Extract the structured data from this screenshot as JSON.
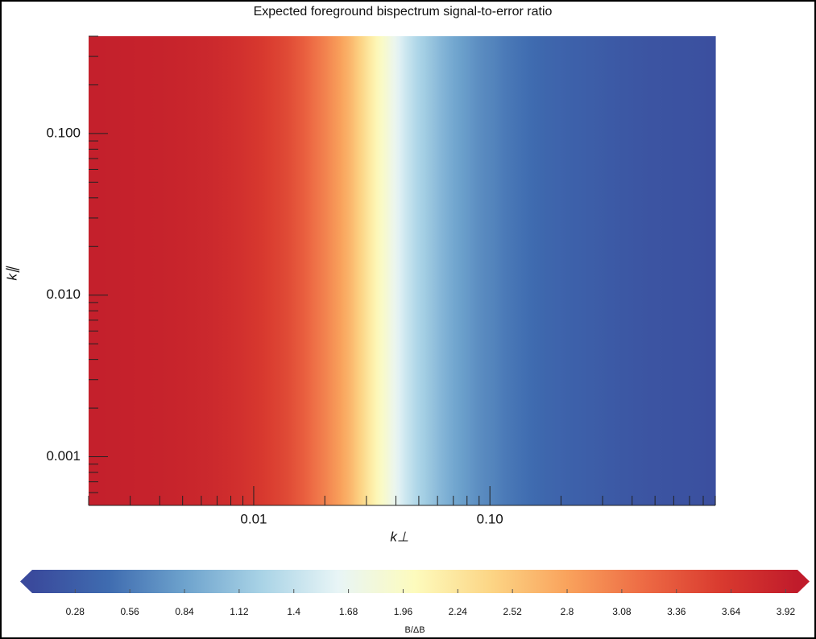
{
  "chart_data": {
    "type": "heatmap",
    "title": "Expected foreground bispectrum signal-to-error ratio",
    "xlabel": "k⊥",
    "ylabel": "k∥",
    "xlog": true,
    "ylog": true,
    "xlim": [
      0.002,
      0.9
    ],
    "ylim": [
      0.0005,
      0.4
    ],
    "xticks": [
      0.01,
      {
        "value": 0.1,
        "label": "0.10"
      }
    ],
    "yticks": [
      {
        "value": 0.001,
        "label": "0.001"
      },
      {
        "value": 0.01,
        "label": "0.010"
      },
      {
        "value": 0.1,
        "label": "0.100"
      }
    ],
    "xminorticks": [
      0.002,
      0.003,
      0.004,
      0.005,
      0.006,
      0.007,
      0.008,
      0.009,
      0.02,
      0.03,
      0.04,
      0.05,
      0.06,
      0.07,
      0.08,
      0.09,
      0.2,
      0.3,
      0.4,
      0.5,
      0.6,
      0.7,
      0.8,
      0.9
    ],
    "yminorticks": [
      0.0005,
      0.0006,
      0.0007,
      0.0008,
      0.0009,
      0.002,
      0.003,
      0.004,
      0.005,
      0.006,
      0.007,
      0.008,
      0.009,
      0.02,
      0.03,
      0.04,
      0.05,
      0.06,
      0.07,
      0.08,
      0.09,
      0.2,
      0.3,
      0.4
    ],
    "x": [
      0.002,
      0.003,
      0.004,
      0.005,
      0.006,
      0.008,
      0.01,
      0.012,
      0.014,
      0.016,
      0.019,
      0.022,
      0.025,
      0.028,
      0.031,
      0.035,
      0.039,
      0.044,
      0.05,
      0.057,
      0.065,
      0.075,
      0.09,
      0.1,
      0.13,
      0.17,
      0.22,
      0.28,
      0.37,
      0.48,
      0.65,
      0.9
    ],
    "values": [
      3.92,
      3.9,
      3.88,
      3.85,
      3.82,
      3.75,
      3.65,
      3.55,
      3.45,
      3.3,
      3.1,
      2.9,
      2.7,
      2.45,
      2.2,
      1.95,
      1.7,
      1.45,
      1.25,
      1.1,
      0.95,
      0.82,
      0.7,
      0.62,
      0.5,
      0.4,
      0.33,
      0.28,
      0.22,
      0.18,
      0.15,
      0.12
    ],
    "colorbar": {
      "label": "B/ΔB",
      "clim": [
        0.06,
        3.98
      ],
      "ticks": [
        0.28,
        0.56,
        0.84,
        1.12,
        1.4,
        1.68,
        1.96,
        2.24,
        2.52,
        2.8,
        3.08,
        3.36,
        3.64,
        3.92
      ],
      "colors": [
        "#3a4a9c",
        "#3f6cb0",
        "#6ea3cd",
        "#a9d3e6",
        "#e8f5f6",
        "#fdfbbd",
        "#fcd585",
        "#f9a25c",
        "#ed6a44",
        "#d93a2f",
        "#c01b2b"
      ]
    }
  }
}
